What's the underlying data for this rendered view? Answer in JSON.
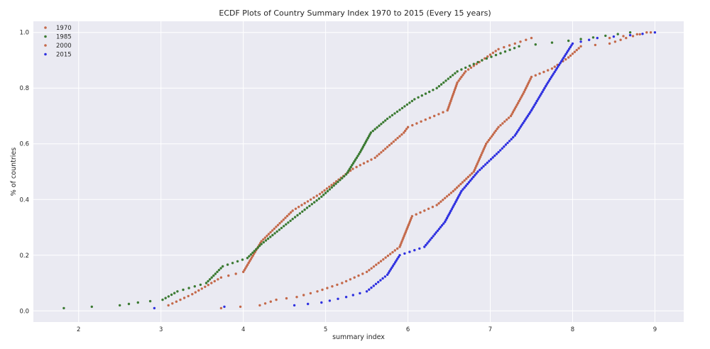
{
  "chart_data": {
    "type": "scatter",
    "title": "ECDF Plots of Country Summary Index 1970 to 2015 (Every 15 years)",
    "xlabel": "summary index",
    "ylabel": "% of countries",
    "xlim": [
      1.45,
      9.35
    ],
    "ylim": [
      -0.04,
      1.04
    ],
    "xticks": [
      2,
      3,
      4,
      5,
      6,
      7,
      8,
      9
    ],
    "yticks": [
      0.0,
      0.2,
      0.4,
      0.6,
      0.8,
      1.0
    ],
    "xtick_labels": [
      "2",
      "3",
      "4",
      "5",
      "6",
      "7",
      "8",
      "9"
    ],
    "ytick_labels": [
      "0.0",
      "0.2",
      "0.4",
      "0.6",
      "0.8",
      "1.0"
    ],
    "grid": true,
    "legend_position": "top-left",
    "background": "#EAEAF2",
    "series": [
      {
        "name": "1970",
        "color": "#C4694A",
        "anchors": [
          [
            3.09,
            0.02
          ],
          [
            3.38,
            0.06
          ],
          [
            3.73,
            0.12
          ],
          [
            4.0,
            0.14
          ],
          [
            4.22,
            0.25
          ],
          [
            4.6,
            0.36
          ],
          [
            4.93,
            0.42
          ],
          [
            5.33,
            0.51
          ],
          [
            5.6,
            0.55
          ],
          [
            5.95,
            0.64
          ],
          [
            6.0,
            0.66
          ],
          [
            6.48,
            0.72
          ],
          [
            6.6,
            0.82
          ],
          [
            6.7,
            0.86
          ],
          [
            7.1,
            0.94
          ],
          [
            7.5,
            0.98
          ],
          [
            8.45,
            0.98
          ],
          [
            8.95,
            1.0
          ]
        ]
      },
      {
        "name": "1985",
        "color": "#3B7A32",
        "anchors": [
          [
            1.82,
            0.01
          ],
          [
            2.5,
            0.02
          ],
          [
            2.72,
            0.03
          ],
          [
            3.02,
            0.04
          ],
          [
            3.2,
            0.07
          ],
          [
            3.55,
            0.1
          ],
          [
            3.75,
            0.16
          ],
          [
            4.05,
            0.19
          ],
          [
            4.22,
            0.24
          ],
          [
            4.6,
            0.33
          ],
          [
            4.95,
            0.41
          ],
          [
            5.25,
            0.49
          ],
          [
            5.42,
            0.57
          ],
          [
            5.55,
            0.64
          ],
          [
            5.75,
            0.69
          ],
          [
            6.08,
            0.76
          ],
          [
            6.35,
            0.8
          ],
          [
            6.6,
            0.86
          ],
          [
            6.9,
            0.9
          ],
          [
            7.35,
            0.95
          ],
          [
            7.95,
            0.97
          ],
          [
            8.7,
            1.0
          ]
        ]
      },
      {
        "name": "2000",
        "color": "#C4694A",
        "anchors": [
          [
            3.73,
            0.01
          ],
          [
            4.2,
            0.02
          ],
          [
            4.4,
            0.04
          ],
          [
            4.65,
            0.05
          ],
          [
            4.9,
            0.07
          ],
          [
            5.2,
            0.1
          ],
          [
            5.5,
            0.14
          ],
          [
            5.9,
            0.23
          ],
          [
            6.05,
            0.34
          ],
          [
            6.35,
            0.38
          ],
          [
            6.55,
            0.43
          ],
          [
            6.8,
            0.5
          ],
          [
            6.95,
            0.6
          ],
          [
            7.1,
            0.66
          ],
          [
            7.25,
            0.7
          ],
          [
            7.4,
            0.78
          ],
          [
            7.5,
            0.84
          ],
          [
            7.75,
            0.87
          ],
          [
            7.95,
            0.91
          ],
          [
            8.1,
            0.95
          ],
          [
            8.45,
            0.96
          ],
          [
            8.65,
            0.98
          ],
          [
            8.9,
            1.0
          ]
        ]
      },
      {
        "name": "2015",
        "color": "#2F31E0",
        "anchors": [
          [
            2.92,
            0.01
          ],
          [
            4.62,
            0.02
          ],
          [
            4.95,
            0.03
          ],
          [
            5.25,
            0.05
          ],
          [
            5.5,
            0.07
          ],
          [
            5.75,
            0.13
          ],
          [
            5.9,
            0.2
          ],
          [
            6.2,
            0.23
          ],
          [
            6.45,
            0.32
          ],
          [
            6.65,
            0.43
          ],
          [
            6.85,
            0.5
          ],
          [
            7.1,
            0.57
          ],
          [
            7.3,
            0.63
          ],
          [
            7.5,
            0.72
          ],
          [
            7.7,
            0.82
          ],
          [
            7.85,
            0.89
          ],
          [
            8.0,
            0.96
          ],
          [
            8.3,
            0.98
          ],
          [
            8.7,
            0.99
          ],
          [
            9.0,
            1.0
          ]
        ]
      }
    ]
  }
}
